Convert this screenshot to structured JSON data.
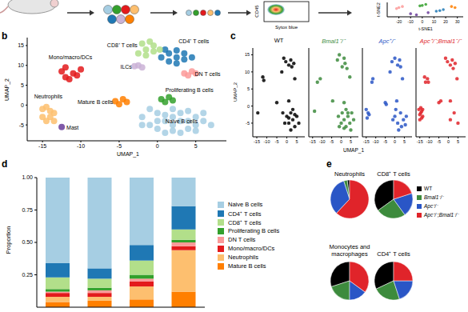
{
  "chart_data": [
    {
      "type": "density",
      "x_label": "Sytox blue",
      "y_label": "CD45"
    },
    {
      "type": "scatter",
      "x_label": "t-SNE1",
      "y_label": "t-SNE2",
      "xlim": [
        -30,
        35
      ],
      "ylim": [
        -35,
        35
      ],
      "xticks": [
        -20,
        -10,
        0,
        10,
        20,
        30
      ],
      "tick_labels": "x",
      "series": [
        {
          "color": "#fb9a99",
          "x": [
            -20,
            -17,
            -22
          ],
          "values": [
            10,
            15,
            5
          ]
        },
        {
          "color": "#33a02c",
          "x": [
            0,
            3,
            -2
          ],
          "values": [
            20,
            25,
            18
          ]
        },
        {
          "color": "#1f78b4",
          "x": [
            15,
            18,
            12
          ],
          "values": [
            -5,
            0,
            -8
          ]
        },
        {
          "color": "#ff7f00",
          "x": [
            25,
            28
          ],
          "values": [
            15,
            10
          ]
        },
        {
          "color": "#6a3d9a",
          "x": [
            -10,
            -5,
            5
          ],
          "values": [
            -20,
            -25,
            -15
          ]
        }
      ]
    },
    {
      "type": "scatter",
      "panel_label": "b",
      "x_label": "UMAP_1",
      "y_label": "UMAP_2",
      "xlim": [
        -17,
        9
      ],
      "ylim": [
        -9,
        17
      ],
      "xticks": [
        -15,
        -10,
        -5,
        0,
        5
      ],
      "yticks": [
        -5,
        0,
        5,
        10,
        15
      ],
      "series": [
        {
          "name": "Naive B cells",
          "color": "#a6cee3",
          "x": [
            -2,
            -1,
            0,
            0,
            1,
            1,
            2,
            2,
            2,
            3,
            3,
            4,
            4,
            5,
            5,
            6,
            6,
            7,
            -1,
            3,
            0,
            2,
            4,
            -2,
            1,
            5
          ],
          "values": [
            -3,
            -5,
            -2,
            -6,
            -4,
            -7,
            -1,
            -3,
            -5,
            -7,
            -2,
            -4,
            -6,
            -3,
            -5,
            -4,
            -2,
            -5,
            -1,
            -4,
            -4,
            -6.5,
            -1.5,
            -5,
            -2.5,
            -6.5
          ]
        },
        {
          "name": "CD4⁺ T cells",
          "color": "#1f78b4",
          "x": [
            0.5,
            1.5,
            1.5,
            2.5,
            2.5,
            3.5,
            3.5,
            4.5,
            1,
            2.5
          ],
          "values": [
            12,
            11,
            13,
            12,
            10.5,
            11.5,
            13,
            12,
            14,
            13.8
          ]
        },
        {
          "name": "CD8⁺ T cells",
          "color": "#b2df8a",
          "x": [
            -2.5,
            -1.5,
            -1.5,
            -0.5,
            -0.5,
            0.3,
            -2,
            -1
          ],
          "values": [
            13,
            14,
            12.5,
            13.5,
            15,
            14,
            15.5,
            16
          ]
        },
        {
          "name": "Proliferating B cells",
          "color": "#33a02c",
          "x": [
            0.5,
            1.5,
            1,
            2
          ],
          "values": [
            1.5,
            2,
            0.8,
            1.2
          ]
        },
        {
          "name": "DN T cells",
          "color": "#fb9a99",
          "x": [
            3.5,
            4.5,
            4,
            5
          ],
          "values": [
            8,
            8.5,
            7.5,
            8
          ]
        },
        {
          "name": "Mono/macro/DCs",
          "color": "#e31a1c",
          "x": [
            -12,
            -11,
            -12.5,
            -11.5,
            -10.5,
            -12,
            -10
          ],
          "values": [
            7,
            8,
            8.5,
            6.5,
            7.5,
            9.5,
            9
          ]
        },
        {
          "name": "Neutrophils",
          "color": "#fdbf6f",
          "x": [
            -15,
            -14,
            -15,
            -14,
            -13.5,
            -14.5,
            -14.5,
            -13.5
          ],
          "values": [
            -1,
            -1.5,
            -3,
            -3,
            -2,
            -0.5,
            -4,
            -4
          ]
        },
        {
          "name": "Mature B cells",
          "color": "#ff7f00",
          "x": [
            -5.5,
            -4.5,
            -5,
            -4
          ],
          "values": [
            1,
            1.5,
            0.2,
            0.8
          ]
        },
        {
          "name": "ILCs",
          "color": "#cab2d6",
          "x": [
            -2.5,
            -2,
            -3
          ],
          "values": [
            10,
            9.5,
            9.8
          ]
        },
        {
          "name": "Mast",
          "color": "#6a3d9a",
          "x": [
            -12.5
          ],
          "values": [
            -5.5
          ]
        }
      ]
    },
    {
      "type": "scatter",
      "panel_label": "c",
      "x_label": "UMAP_1",
      "y_label": "UMAP_2",
      "xlim": [
        -17,
        9
      ],
      "ylim": [
        -9,
        17
      ],
      "xticks": [
        -15,
        -10,
        -5,
        0,
        5
      ],
      "yticks": [
        -5,
        0,
        5,
        10,
        15
      ],
      "series": [
        {
          "name": "WT",
          "color": "#000000",
          "x": [
            -14.5,
            -11.5,
            -12,
            -5,
            -1.5,
            -0.5,
            1,
            2.5,
            3.5,
            2,
            4,
            -2.5,
            1,
            0,
            1,
            2,
            3,
            4,
            5,
            6,
            -1,
            2,
            3,
            -2,
            4,
            1
          ],
          "values": [
            -2,
            7.5,
            8.5,
            1,
            14,
            13,
            12,
            11.5,
            12.5,
            13.5,
            8,
            10,
            1.5,
            -3,
            -5,
            -2,
            -4,
            -6,
            -3,
            -5,
            -5,
            -7,
            -1,
            -2,
            -2.5,
            -3.5
          ]
        },
        {
          "name": "Bmal1⁻/⁻",
          "color": "#3d8b3d",
          "x": [
            -14,
            -11,
            -12.5,
            -4.5,
            -2,
            -1,
            0.5,
            2,
            3,
            1.5,
            4.5,
            1.5,
            0.5,
            1.5,
            2.5,
            3.5,
            4.5,
            5.5,
            6.5,
            -1.5,
            1.5,
            3.5,
            -1,
            0,
            2.5,
            5
          ],
          "values": [
            -1.5,
            8,
            7,
            1.5,
            13.5,
            15,
            11.5,
            12.5,
            11,
            14,
            8.5,
            1,
            -2,
            -4,
            -6,
            -3,
            -5,
            -2,
            -4,
            -3,
            -6.5,
            -2,
            -6,
            -5,
            -1,
            -7
          ]
        },
        {
          "name": "Apc⁺/⁻",
          "color": "#2a56c6",
          "x": [
            -15,
            -14,
            -14.5,
            -13.5,
            -11.5,
            -12,
            -5,
            -4.5,
            -1.5,
            0,
            1.5,
            3,
            2.5,
            4,
            -2.5,
            1,
            0,
            1.5,
            3,
            4.5,
            5.5,
            -1,
            2,
            3.5,
            6,
            0.5
          ],
          "values": [
            -1,
            -2,
            -3.5,
            -2.5,
            8,
            7,
            1,
            0.5,
            13,
            14,
            12,
            11.5,
            13.5,
            8,
            10,
            1.5,
            -3,
            -5,
            -2,
            -4,
            -5.5,
            -4,
            -7,
            -6,
            -3,
            -1
          ]
        },
        {
          "name": "Apc⁺/⁻;Bmal1⁻/⁻",
          "color": "#e0242a",
          "x": [
            -15.5,
            -15,
            -14.5,
            -14,
            -13.5,
            -15,
            -14,
            -13.5,
            -14.5,
            -12,
            -11,
            -12.5,
            -10.5,
            -5,
            -4,
            -1.5,
            -0.5,
            1,
            2.5,
            3.5,
            2,
            4.5,
            1,
            1,
            3,
            5
          ],
          "values": [
            -1,
            -2.5,
            -0.5,
            -1.5,
            -3,
            -4,
            -3.5,
            -1,
            -2,
            7,
            8,
            8.5,
            7,
            1,
            1.5,
            14,
            13,
            12,
            11,
            12.5,
            13.5,
            8,
            1.5,
            -4,
            -2,
            -5
          ]
        }
      ]
    },
    {
      "type": "bar",
      "panel_label": "d",
      "stacked": true,
      "y_label": "Proportion",
      "categories": [
        null,
        null,
        null,
        null
      ],
      "ylim": [
        0,
        1
      ],
      "yticks": [
        0.25,
        {
          "value": 0.5,
          "label": "0.50"
        },
        0.75,
        {
          "value": 1,
          "label": "1.00"
        }
      ],
      "tick_labels": "y",
      "legend": "right",
      "series": [
        {
          "name": "Naive B cells",
          "color": "#a6cee3",
          "values": [
            0.66,
            0.7,
            0.52,
            0.22
          ]
        },
        {
          "name": "CD4⁺ T cells",
          "color": "#1f78b4",
          "values": [
            0.11,
            0.08,
            0.12,
            0.18
          ]
        },
        {
          "name": "CD8⁺ T cells",
          "color": "#b2df8a",
          "values": [
            0.09,
            0.07,
            0.11,
            0.08
          ]
        },
        {
          "name": "Proliferating B cells",
          "color": "#33a02c",
          "values": [
            0.02,
            0.02,
            0.03,
            0.02
          ]
        },
        {
          "name": "DN T cells",
          "color": "#fb9a99",
          "values": [
            0.01,
            0.02,
            0.02,
            0.03
          ]
        },
        {
          "name": "Mono/macro/DCs",
          "color": "#e31a1c",
          "values": [
            0.03,
            0.03,
            0.04,
            0.03
          ]
        },
        {
          "name": "Neutrophils",
          "color": "#fdbf6f",
          "values": [
            0.04,
            0.03,
            0.1,
            0.32
          ]
        },
        {
          "name": "Mature B cells",
          "color": "#ff7f00",
          "values": [
            0.04,
            0.05,
            0.06,
            0.12
          ]
        }
      ]
    },
    {
      "type": "pie",
      "panel_label": "e",
      "legend": "right",
      "categories": [
        "WT",
        "Bmal1⁻/⁻",
        "Apc⁺/⁻",
        "Apc⁺/⁻;Bmal1⁻/⁻"
      ],
      "colors": [
        "#000000",
        "#3d8b3d",
        "#2a56c6",
        "#e0242a"
      ],
      "pies": [
        {
          "title": "Neutrophils",
          "values": [
            2,
            3,
            33,
            62
          ]
        },
        {
          "title": "CD8⁺ T cells",
          "values": [
            35,
            25,
            20,
            20
          ]
        },
        {
          "title": "Monocytes and macrophages",
          "values": [
            30,
            20,
            15,
            35
          ]
        },
        {
          "title": "CD4⁺ T cells",
          "values": [
            32,
            23,
            20,
            25
          ]
        }
      ]
    }
  ]
}
